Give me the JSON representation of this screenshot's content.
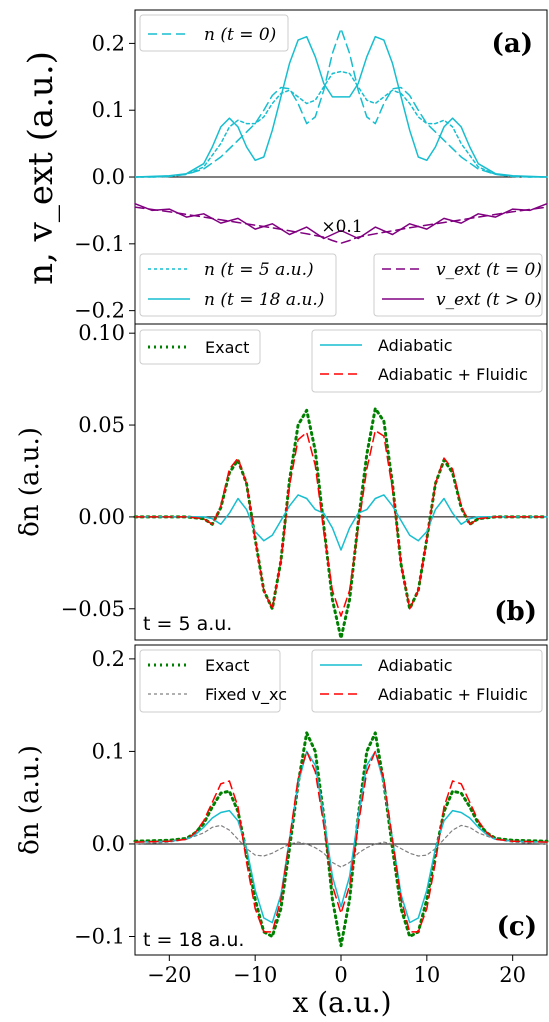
{
  "colors": {
    "cyan": "#17becf",
    "purple": "#800080",
    "red": "#ff0000",
    "green": "#008000",
    "gray": "#808080"
  },
  "xaxis": {
    "label": "x (a.u.)",
    "ticks": [
      "−20",
      "−10",
      "0",
      "10",
      "20"
    ],
    "xlim": [
      -24,
      24
    ]
  },
  "chart_data": [
    {
      "type": "line",
      "panel_label": "(a)",
      "ylabel": "n, v_ext (a.u.)",
      "ylim": [
        -0.22,
        0.25
      ],
      "yticks": [
        "0.2",
        "0.1",
        "0.0",
        "−0.1",
        "−0.2"
      ],
      "annotation": "×0.1",
      "legend_top": "n (t = 0)",
      "legend_bottom_left": [
        "n (t = 5 a.u.)",
        "n (t = 18 a.u.)"
      ],
      "legend_bottom_right": [
        "v_ext (t = 0)",
        "v_ext (t > 0)"
      ],
      "series": [
        {
          "name": "n (t = 0)",
          "x": [
            -24,
            -22,
            -20,
            -18,
            -16,
            -14,
            -12,
            -10,
            -9,
            -8,
            -7,
            -6,
            -5,
            -4,
            -3,
            -2,
            -1,
            0,
            1,
            2,
            3,
            4,
            5,
            6,
            7,
            8,
            9,
            10,
            12,
            14,
            16,
            18,
            20,
            22,
            24
          ],
          "values": [
            0,
            0,
            0.001,
            0.004,
            0.012,
            0.03,
            0.055,
            0.08,
            0.1,
            0.122,
            0.134,
            0.132,
            0.11,
            0.08,
            0.09,
            0.13,
            0.185,
            0.222,
            0.185,
            0.13,
            0.09,
            0.08,
            0.11,
            0.132,
            0.134,
            0.122,
            0.1,
            0.08,
            0.055,
            0.03,
            0.012,
            0.004,
            0.001,
            0,
            0
          ]
        },
        {
          "name": "n (t = 5 a.u.)",
          "x": [
            -24,
            -22,
            -20,
            -18,
            -16,
            -14,
            -13,
            -12,
            -11,
            -10,
            -9,
            -8,
            -7,
            -6,
            -5,
            -4,
            -3,
            -2,
            -1,
            0,
            1,
            2,
            3,
            4,
            5,
            6,
            7,
            8,
            9,
            10,
            11,
            12,
            13,
            14,
            16,
            18,
            20,
            22,
            24
          ],
          "values": [
            0,
            0,
            0.001,
            0.004,
            0.015,
            0.05,
            0.075,
            0.085,
            0.08,
            0.08,
            0.09,
            0.11,
            0.125,
            0.13,
            0.12,
            0.11,
            0.115,
            0.135,
            0.155,
            0.158,
            0.155,
            0.135,
            0.115,
            0.11,
            0.12,
            0.13,
            0.125,
            0.11,
            0.09,
            0.08,
            0.08,
            0.085,
            0.075,
            0.05,
            0.015,
            0.004,
            0.001,
            0,
            0
          ]
        },
        {
          "name": "n (t = 18 a.u.)",
          "x": [
            -24,
            -22,
            -20,
            -18,
            -16,
            -15,
            -14,
            -13,
            -12,
            -11,
            -10,
            -9,
            -8,
            -7,
            -6,
            -5,
            -4,
            -3,
            -2,
            -1,
            0,
            1,
            2,
            3,
            4,
            5,
            6,
            7,
            8,
            9,
            10,
            11,
            12,
            13,
            14,
            15,
            16,
            18,
            20,
            22,
            24
          ],
          "values": [
            0,
            0.001,
            0.002,
            0.005,
            0.02,
            0.045,
            0.075,
            0.088,
            0.075,
            0.045,
            0.025,
            0.03,
            0.07,
            0.12,
            0.17,
            0.205,
            0.21,
            0.18,
            0.14,
            0.12,
            0.12,
            0.12,
            0.14,
            0.18,
            0.21,
            0.205,
            0.17,
            0.12,
            0.07,
            0.03,
            0.025,
            0.045,
            0.075,
            0.088,
            0.075,
            0.045,
            0.02,
            0.005,
            0.002,
            0.001,
            0
          ]
        },
        {
          "name": "v_ext (t = 0)",
          "x": [
            -24,
            -20,
            -16,
            -12,
            -8,
            -4,
            -2,
            -1,
            0,
            1,
            2,
            4,
            8,
            12,
            16,
            20,
            24
          ],
          "values": [
            -0.045,
            -0.052,
            -0.06,
            -0.068,
            -0.076,
            -0.085,
            -0.09,
            -0.095,
            -0.099,
            -0.095,
            -0.09,
            -0.085,
            -0.076,
            -0.068,
            -0.06,
            -0.052,
            -0.045
          ]
        },
        {
          "name": "v_ext (t > 0)",
          "x": [
            -24,
            -22,
            -20,
            -18,
            -16,
            -14,
            -12,
            -10,
            -8,
            -6,
            -4,
            -2,
            0,
            2,
            4,
            6,
            8,
            10,
            12,
            14,
            16,
            18,
            20,
            22,
            24
          ],
          "values": [
            -0.04,
            -0.05,
            -0.048,
            -0.06,
            -0.055,
            -0.069,
            -0.062,
            -0.078,
            -0.07,
            -0.086,
            -0.075,
            -0.092,
            -0.08,
            -0.092,
            -0.075,
            -0.086,
            -0.07,
            -0.078,
            -0.062,
            -0.069,
            -0.055,
            -0.06,
            -0.048,
            -0.05,
            -0.04
          ]
        }
      ]
    },
    {
      "type": "line",
      "panel_label": "(b)",
      "ylabel": "δn (a.u.)",
      "ylim": [
        -0.067,
        0.105
      ],
      "yticks": [
        "0.10",
        "0.05",
        "0.00",
        "−0.05"
      ],
      "time_label": "t = 5 a.u.",
      "legend_left": [
        "Exact"
      ],
      "legend_right": [
        "Adiabatic",
        "Adiabatic + Fluidic"
      ],
      "series": [
        {
          "name": "Exact",
          "x": [
            -24,
            -18,
            -16,
            -15,
            -14,
            -13,
            -12,
            -11,
            -10,
            -9,
            -8,
            -7,
            -6,
            -5,
            -4,
            -3,
            -2,
            -1,
            0,
            1,
            2,
            3,
            4,
            5,
            6,
            7,
            8,
            9,
            10,
            11,
            12,
            13,
            14,
            15,
            16,
            18,
            24
          ],
          "values": [
            0,
            0,
            -0.001,
            -0.004,
            0.005,
            0.024,
            0.031,
            0.018,
            -0.012,
            -0.04,
            -0.05,
            -0.024,
            0.02,
            0.05,
            0.058,
            0.036,
            -0.005,
            -0.045,
            -0.066,
            -0.045,
            -0.003,
            0.034,
            0.059,
            0.052,
            0.018,
            -0.026,
            -0.05,
            -0.04,
            -0.012,
            0.018,
            0.031,
            0.024,
            0.005,
            -0.004,
            -0.001,
            0,
            0
          ]
        },
        {
          "name": "Adiabatic",
          "x": [
            -24,
            -18,
            -16,
            -15,
            -14,
            -13,
            -12,
            -11,
            -10,
            -9,
            -8,
            -7,
            -6,
            -5,
            -4,
            -3,
            -2,
            -1,
            0,
            1,
            2,
            3,
            4,
            5,
            6,
            7,
            8,
            9,
            10,
            11,
            12,
            13,
            14,
            15,
            16,
            18,
            24
          ],
          "values": [
            0,
            0,
            0,
            -0.001,
            -0.004,
            0.002,
            0.01,
            0.004,
            -0.008,
            -0.013,
            -0.01,
            -0.002,
            0.006,
            0.012,
            0.01,
            0.004,
            0.002,
            -0.006,
            -0.018,
            -0.006,
            0.002,
            0.004,
            0.01,
            0.012,
            0.006,
            -0.002,
            -0.01,
            -0.013,
            -0.008,
            0.004,
            0.01,
            0.002,
            -0.004,
            -0.001,
            0,
            0,
            0
          ]
        },
        {
          "name": "Adiabatic + Fluidic",
          "x": [
            -24,
            -18,
            -16,
            -15,
            -14,
            -13,
            -12,
            -11,
            -10,
            -9,
            -8,
            -7,
            -6,
            -5,
            -4,
            -3,
            -2,
            -1,
            0,
            1,
            2,
            3,
            4,
            5,
            6,
            7,
            8,
            9,
            10,
            11,
            12,
            13,
            14,
            15,
            16,
            18,
            24
          ],
          "values": [
            0,
            0,
            -0.001,
            -0.004,
            0.006,
            0.026,
            0.032,
            0.018,
            -0.012,
            -0.04,
            -0.05,
            -0.024,
            0.017,
            0.042,
            0.046,
            0.028,
            -0.008,
            -0.04,
            -0.054,
            -0.04,
            -0.006,
            0.026,
            0.047,
            0.044,
            0.015,
            -0.026,
            -0.05,
            -0.04,
            -0.012,
            0.018,
            0.032,
            0.026,
            0.006,
            -0.004,
            -0.001,
            0,
            0
          ]
        }
      ]
    },
    {
      "type": "line",
      "panel_label": "(c)",
      "ylabel": "δn (a.u.)",
      "ylim": [
        -0.12,
        0.215
      ],
      "yticks": [
        "0.2",
        "0.1",
        "0.0",
        "−0.1"
      ],
      "time_label": "t = 18 a.u.",
      "legend_left": [
        "Exact",
        "Fixed v_xc"
      ],
      "legend_right": [
        "Adiabatic",
        "Adiabatic + Fluidic"
      ],
      "series": [
        {
          "name": "Exact",
          "x": [
            -24,
            -20,
            -18,
            -17,
            -16,
            -15,
            -14,
            -13,
            -12,
            -11,
            -10,
            -9,
            -8,
            -7,
            -6,
            -5,
            -4,
            -3,
            -2,
            -1,
            0,
            1,
            2,
            3,
            4,
            5,
            6,
            7,
            8,
            9,
            10,
            11,
            12,
            13,
            14,
            15,
            16,
            17,
            18,
            20,
            24
          ],
          "values": [
            0.003,
            0.004,
            0.006,
            0.012,
            0.022,
            0.04,
            0.055,
            0.057,
            0.035,
            -0.01,
            -0.06,
            -0.095,
            -0.1,
            -0.07,
            -0.005,
            0.065,
            0.12,
            0.1,
            0.03,
            -0.06,
            -0.11,
            -0.06,
            0.03,
            0.1,
            0.12,
            0.065,
            -0.005,
            -0.07,
            -0.1,
            -0.095,
            -0.06,
            -0.01,
            0.035,
            0.057,
            0.055,
            0.04,
            0.022,
            0.012,
            0.006,
            0.004,
            0.003
          ]
        },
        {
          "name": "Fixed v_xc",
          "x": [
            -24,
            -20,
            -18,
            -16,
            -15,
            -14,
            -13,
            -12,
            -11,
            -10,
            -9,
            -8,
            -7,
            -6,
            -5,
            -4,
            -3,
            -2,
            -1,
            0,
            1,
            2,
            3,
            4,
            5,
            6,
            7,
            8,
            9,
            10,
            11,
            12,
            13,
            14,
            15,
            16,
            18,
            20,
            24
          ],
          "values": [
            0,
            0.002,
            0.005,
            0.012,
            0.018,
            0.02,
            0.015,
            0.005,
            -0.005,
            -0.012,
            -0.013,
            -0.01,
            -0.005,
            0,
            0.002,
            0,
            -0.004,
            -0.01,
            -0.02,
            -0.025,
            -0.02,
            -0.01,
            -0.004,
            0,
            0.002,
            0,
            -0.005,
            -0.01,
            -0.013,
            -0.012,
            -0.005,
            0.005,
            0.015,
            0.02,
            0.018,
            0.012,
            0.005,
            0.002,
            0
          ]
        },
        {
          "name": "Adiabatic",
          "x": [
            -24,
            -20,
            -18,
            -17,
            -16,
            -15,
            -14,
            -13,
            -12,
            -11,
            -10,
            -9,
            -8,
            -7,
            -6,
            -5,
            -4,
            -3,
            -2,
            -1,
            0,
            1,
            2,
            3,
            4,
            5,
            6,
            7,
            8,
            9,
            10,
            11,
            12,
            13,
            14,
            15,
            16,
            17,
            18,
            20,
            24
          ],
          "values": [
            0.002,
            0.003,
            0.005,
            0.01,
            0.018,
            0.028,
            0.034,
            0.036,
            0.025,
            -0.005,
            -0.05,
            -0.08,
            -0.085,
            -0.055,
            0.005,
            0.065,
            0.1,
            0.085,
            0.03,
            -0.035,
            -0.068,
            -0.035,
            0.03,
            0.085,
            0.1,
            0.065,
            0.005,
            -0.055,
            -0.085,
            -0.08,
            -0.05,
            -0.005,
            0.025,
            0.036,
            0.034,
            0.028,
            0.018,
            0.01,
            0.005,
            0.003,
            0.002
          ]
        },
        {
          "name": "Adiabatic + Fluidic",
          "x": [
            -24,
            -20,
            -18,
            -17,
            -16,
            -15,
            -14,
            -13,
            -12,
            -11,
            -10,
            -9,
            -8,
            -7,
            -6,
            -5,
            -4,
            -3,
            -2,
            -1,
            0,
            1,
            2,
            3,
            4,
            5,
            6,
            7,
            8,
            9,
            10,
            11,
            12,
            13,
            14,
            15,
            16,
            17,
            18,
            20,
            24
          ],
          "values": [
            0.002,
            0.003,
            0.005,
            0.012,
            0.025,
            0.045,
            0.065,
            0.068,
            0.04,
            -0.02,
            -0.07,
            -0.095,
            -0.095,
            -0.06,
            0.005,
            0.07,
            0.1,
            0.078,
            0.02,
            -0.045,
            -0.075,
            -0.045,
            0.02,
            0.078,
            0.1,
            0.07,
            0.005,
            -0.06,
            -0.095,
            -0.095,
            -0.07,
            -0.02,
            0.04,
            0.068,
            0.065,
            0.045,
            0.025,
            0.012,
            0.005,
            0.003,
            0.002
          ]
        }
      ]
    }
  ]
}
